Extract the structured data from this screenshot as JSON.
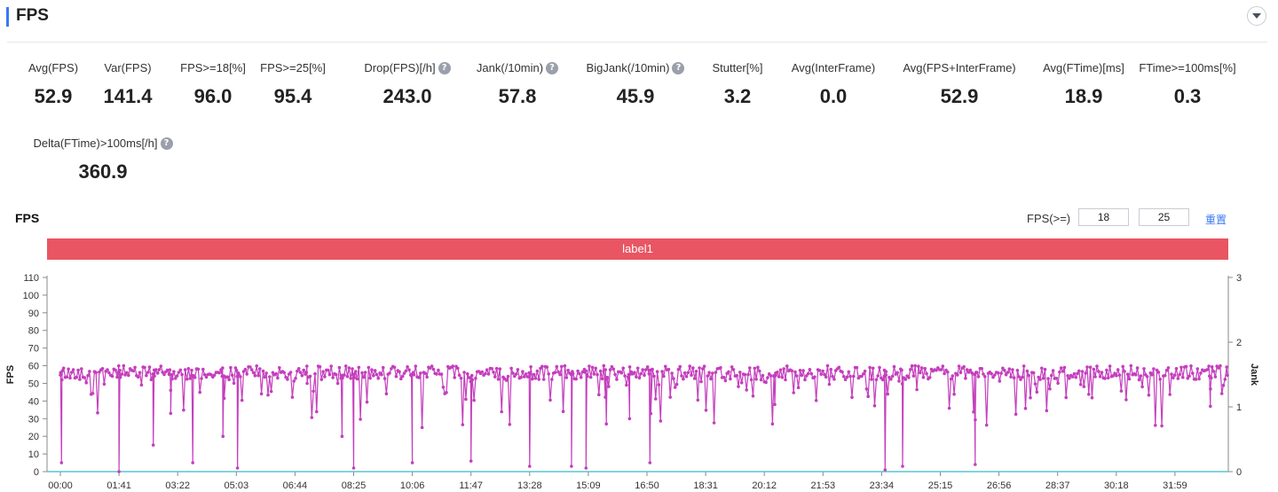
{
  "header": {
    "title": "FPS"
  },
  "metrics": [
    {
      "label": "Avg(FPS)",
      "value": "52.9",
      "help": false
    },
    {
      "label": "Var(FPS)",
      "value": "141.4",
      "help": false
    },
    {
      "label": "FPS>=18[%]",
      "value": "96.0",
      "help": false
    },
    {
      "label": "FPS>=25[%]",
      "value": "95.4",
      "help": false
    },
    {
      "label": "Drop(FPS)[/h]",
      "value": "243.0",
      "help": true
    },
    {
      "label": "Jank(/10min)",
      "value": "57.8",
      "help": true
    },
    {
      "label": "BigJank(/10min)",
      "value": "45.9",
      "help": true
    },
    {
      "label": "Stutter[%]",
      "value": "3.2",
      "help": false
    },
    {
      "label": "Avg(InterFrame)",
      "value": "0.0",
      "help": false
    },
    {
      "label": "Avg(FPS+InterFrame)",
      "value": "52.9",
      "help": false
    },
    {
      "label": "Avg(FTime)[ms]",
      "value": "18.9",
      "help": false
    },
    {
      "label": "FTime>=100ms[%]",
      "value": "0.3",
      "help": false
    },
    {
      "label": "Delta(FTime)>100ms[/h]",
      "value": "360.9",
      "help": true
    }
  ],
  "help_glyph": "?",
  "chart_section": {
    "title": "FPS",
    "threshold_label": "FPS(>=)",
    "threshold_low": "18",
    "threshold_high": "25",
    "reset_label": "重置",
    "label_bar_text": "label1",
    "label_bar_color": "#e95562"
  },
  "chart_data": {
    "type": "line",
    "series_color": "#c43fbd",
    "jank_color": "#5bc3d3",
    "left_axis": {
      "label": "FPS",
      "min": 0,
      "max": 110,
      "ticks": [
        0,
        10,
        20,
        30,
        40,
        50,
        60,
        70,
        80,
        90,
        100,
        110
      ]
    },
    "right_axis": {
      "label": "Jank",
      "min": 0,
      "max": 3,
      "ticks": [
        0,
        1,
        2,
        3
      ]
    },
    "x_ticks": [
      "00:00",
      "01:41",
      "03:22",
      "05:03",
      "06:44",
      "08:25",
      "10:06",
      "11:47",
      "13:28",
      "15:09",
      "16:50",
      "18:31",
      "20:12",
      "21:53",
      "23:34",
      "25:15",
      "26:56",
      "28:37",
      "30:18",
      "31:59"
    ],
    "fps_baseline": 58,
    "fps_drops": [
      {
        "t": "00:02",
        "fps": 5
      },
      {
        "t": "01:41",
        "fps": 0
      },
      {
        "t": "02:40",
        "fps": 15
      },
      {
        "t": "03:10",
        "fps": 33
      },
      {
        "t": "03:48",
        "fps": 5
      },
      {
        "t": "04:40",
        "fps": 20
      },
      {
        "t": "05:05",
        "fps": 2
      },
      {
        "t": "07:05",
        "fps": 50
      },
      {
        "t": "08:05",
        "fps": 20
      },
      {
        "t": "08:25",
        "fps": 2
      },
      {
        "t": "10:06",
        "fps": 5
      },
      {
        "t": "11:47",
        "fps": 6
      },
      {
        "t": "13:28",
        "fps": 3
      },
      {
        "t": "14:40",
        "fps": 3
      },
      {
        "t": "15:05",
        "fps": 2
      },
      {
        "t": "15:40",
        "fps": 27
      },
      {
        "t": "16:20",
        "fps": 30
      },
      {
        "t": "16:55",
        "fps": 5
      },
      {
        "t": "20:30",
        "fps": 38
      },
      {
        "t": "23:40",
        "fps": 1
      },
      {
        "t": "24:10",
        "fps": 3
      },
      {
        "t": "26:15",
        "fps": 4
      },
      {
        "t": "33:00",
        "fps": 37
      }
    ],
    "jank_value": 0
  }
}
